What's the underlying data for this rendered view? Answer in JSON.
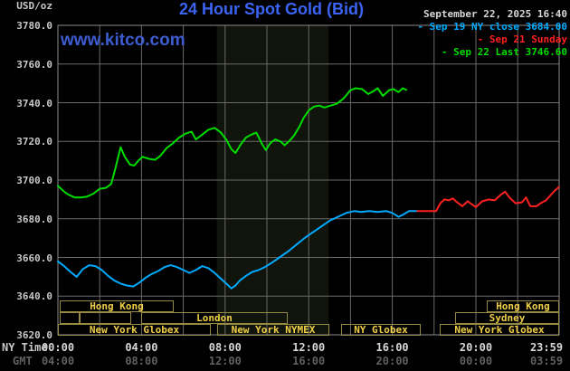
{
  "header": {
    "title": "24 Hour Spot Gold (Bid)",
    "unit_label": "USD/oz",
    "datetime": "September 22, 2025 16:40",
    "watermark": "www.kitco.com"
  },
  "legend": [
    {
      "label": "- Sep 19 NY close 3684.00",
      "color": "#00aaff"
    },
    {
      "label": "- Sep 21 Sunday",
      "color": "#ff2020"
    },
    {
      "label": "- Sep 22 Last 3746.60",
      "color": "#00dc00"
    }
  ],
  "axis": {
    "ny_label": "NY Time",
    "gmt_label": "GMT",
    "y_ticks": [
      "3780.0",
      "3760.0",
      "3740.0",
      "3720.0",
      "3700.0",
      "3680.0",
      "3660.0",
      "3640.0",
      "3620.0"
    ],
    "x_tick_hours": [
      0,
      4,
      8,
      12,
      16,
      20,
      23.983
    ],
    "x_ticks_ny": [
      "00:00",
      "04:00",
      "08:00",
      "12:00",
      "16:00",
      "20:00",
      "23:59"
    ],
    "x_ticks_gmt": [
      "04:00",
      "08:00",
      "12:00",
      "16:00",
      "20:00",
      "00:00",
      "03:59"
    ]
  },
  "sessions": {
    "rows": [
      {
        "boxes": [
          {
            "label": "Hong Kong",
            "start": 0.1,
            "end": 5.55
          },
          {
            "label": "Hong Kong",
            "start": 20.5,
            "end": 23.98
          }
        ]
      },
      {
        "boxes": [
          {
            "label": "",
            "start": 0.1,
            "end": 1.05
          },
          {
            "label": "",
            "start": 1.05,
            "end": 3.5
          },
          {
            "label": "London",
            "start": 4.0,
            "end": 11.0
          },
          {
            "label": "Sydney",
            "start": 19.0,
            "end": 23.98
          }
        ]
      },
      {
        "boxes": [
          {
            "label": "New York Globex",
            "start": 0.0,
            "end": 7.3
          },
          {
            "label": "New York NYMEX",
            "start": 7.6,
            "end": 12.95
          },
          {
            "label": "NY Globex",
            "start": 13.55,
            "end": 17.35
          },
          {
            "label": "New York Globex",
            "start": 18.25,
            "end": 23.98
          }
        ]
      }
    ],
    "highlight_band": {
      "start": 7.6,
      "end": 12.95,
      "color": "#10140b"
    }
  },
  "chart_data": {
    "type": "line",
    "title": "24 Hour Spot Gold (Bid)",
    "xlabel": "NY Time (hours 00:00-23:59)",
    "ylabel": "USD/oz",
    "ylim": [
      3620,
      3780
    ],
    "xlim_hours": [
      0,
      23.983
    ],
    "grid": true,
    "legend_position": "top-right",
    "series": [
      {
        "name": "Sep 19 NY close 3684.00",
        "color": "#00aaff",
        "points": [
          [
            0,
            3658
          ],
          [
            0.3,
            3655.5
          ],
          [
            0.6,
            3652.5
          ],
          [
            0.9,
            3650
          ],
          [
            1.2,
            3654
          ],
          [
            1.5,
            3656
          ],
          [
            1.8,
            3655.5
          ],
          [
            2.1,
            3653.5
          ],
          [
            2.4,
            3650.5
          ],
          [
            2.7,
            3648
          ],
          [
            3.0,
            3646.5
          ],
          [
            3.3,
            3645.5
          ],
          [
            3.6,
            3645
          ],
          [
            3.9,
            3647
          ],
          [
            4.2,
            3649.5
          ],
          [
            4.5,
            3651.5
          ],
          [
            4.8,
            3653
          ],
          [
            5.1,
            3655
          ],
          [
            5.4,
            3656
          ],
          [
            5.7,
            3655
          ],
          [
            6.0,
            3653.5
          ],
          [
            6.3,
            3652
          ],
          [
            6.6,
            3653.5
          ],
          [
            6.9,
            3655.5
          ],
          [
            7.2,
            3654.5
          ],
          [
            7.5,
            3652
          ],
          [
            7.8,
            3649
          ],
          [
            8.1,
            3646
          ],
          [
            8.3,
            3644
          ],
          [
            8.5,
            3645.5
          ],
          [
            8.7,
            3648
          ],
          [
            9.0,
            3650.5
          ],
          [
            9.3,
            3652.5
          ],
          [
            9.6,
            3653.5
          ],
          [
            9.9,
            3655
          ],
          [
            10.2,
            3657
          ],
          [
            10.6,
            3660
          ],
          [
            11.0,
            3663
          ],
          [
            11.4,
            3666.5
          ],
          [
            11.8,
            3670
          ],
          [
            12.2,
            3673
          ],
          [
            12.6,
            3676
          ],
          [
            13.0,
            3679
          ],
          [
            13.4,
            3681
          ],
          [
            13.8,
            3683
          ],
          [
            14.2,
            3684
          ],
          [
            14.5,
            3683.5
          ],
          [
            14.9,
            3684
          ],
          [
            15.3,
            3683.5
          ],
          [
            15.7,
            3684
          ],
          [
            16.0,
            3683
          ],
          [
            16.3,
            3681
          ],
          [
            16.5,
            3682
          ],
          [
            16.8,
            3684
          ],
          [
            17.2,
            3684
          ]
        ]
      },
      {
        "name": "Sep 21 Sunday",
        "color": "#ff2020",
        "points": [
          [
            17.2,
            3684
          ],
          [
            18.1,
            3684
          ],
          [
            18.3,
            3688
          ],
          [
            18.5,
            3690
          ],
          [
            18.7,
            3689.5
          ],
          [
            18.9,
            3690.5
          ],
          [
            19.1,
            3688.5
          ],
          [
            19.35,
            3686.5
          ],
          [
            19.6,
            3689
          ],
          [
            19.8,
            3687.5
          ],
          [
            20.0,
            3686
          ],
          [
            20.3,
            3689
          ],
          [
            20.6,
            3690
          ],
          [
            20.9,
            3689.5
          ],
          [
            21.2,
            3692.5
          ],
          [
            21.4,
            3694
          ],
          [
            21.6,
            3691
          ],
          [
            21.9,
            3688
          ],
          [
            22.2,
            3688.5
          ],
          [
            22.4,
            3691
          ],
          [
            22.6,
            3686.5
          ],
          [
            22.9,
            3686.5
          ],
          [
            23.1,
            3688
          ],
          [
            23.35,
            3689.5
          ],
          [
            23.6,
            3692.5
          ],
          [
            23.8,
            3694.8
          ],
          [
            23.98,
            3696.5
          ]
        ]
      },
      {
        "name": "Sep 22 Last 3746.60",
        "color": "#00dc00",
        "points": [
          [
            0,
            3697
          ],
          [
            0.3,
            3694
          ],
          [
            0.5,
            3692.5
          ],
          [
            0.8,
            3691
          ],
          [
            1.1,
            3691
          ],
          [
            1.4,
            3691.5
          ],
          [
            1.7,
            3693
          ],
          [
            2.0,
            3695.5
          ],
          [
            2.3,
            3696
          ],
          [
            2.55,
            3698
          ],
          [
            2.75,
            3706
          ],
          [
            3.0,
            3717
          ],
          [
            3.2,
            3712
          ],
          [
            3.45,
            3708
          ],
          [
            3.65,
            3707.5
          ],
          [
            3.85,
            3710
          ],
          [
            4.05,
            3712
          ],
          [
            4.35,
            3711
          ],
          [
            4.65,
            3710.5
          ],
          [
            4.9,
            3712.5
          ],
          [
            5.2,
            3716.5
          ],
          [
            5.5,
            3719
          ],
          [
            5.8,
            3722
          ],
          [
            6.1,
            3724
          ],
          [
            6.4,
            3725
          ],
          [
            6.6,
            3721
          ],
          [
            6.9,
            3723.5
          ],
          [
            7.2,
            3726
          ],
          [
            7.5,
            3727
          ],
          [
            7.8,
            3724.5
          ],
          [
            8.05,
            3721
          ],
          [
            8.3,
            3716
          ],
          [
            8.5,
            3714
          ],
          [
            8.75,
            3718.5
          ],
          [
            9.0,
            3722
          ],
          [
            9.25,
            3723.5
          ],
          [
            9.5,
            3724.5
          ],
          [
            9.75,
            3719
          ],
          [
            9.95,
            3715.5
          ],
          [
            10.15,
            3719
          ],
          [
            10.4,
            3721
          ],
          [
            10.65,
            3720
          ],
          [
            10.85,
            3718
          ],
          [
            11.1,
            3720.5
          ],
          [
            11.3,
            3723
          ],
          [
            11.55,
            3727.5
          ],
          [
            11.75,
            3732
          ],
          [
            12.0,
            3736
          ],
          [
            12.25,
            3738
          ],
          [
            12.5,
            3738.5
          ],
          [
            12.75,
            3737.5
          ],
          [
            13.05,
            3738.5
          ],
          [
            13.35,
            3739.5
          ],
          [
            13.65,
            3742
          ],
          [
            13.85,
            3744.5
          ],
          [
            14.0,
            3746.5
          ],
          [
            14.25,
            3747.5
          ],
          [
            14.55,
            3747
          ],
          [
            14.85,
            3744.5
          ],
          [
            15.1,
            3746
          ],
          [
            15.3,
            3747.5
          ],
          [
            15.55,
            3743.5
          ],
          [
            15.85,
            3746.5
          ],
          [
            16.05,
            3747
          ],
          [
            16.3,
            3745.5
          ],
          [
            16.5,
            3747.5
          ],
          [
            16.67,
            3746.6
          ]
        ]
      }
    ]
  }
}
